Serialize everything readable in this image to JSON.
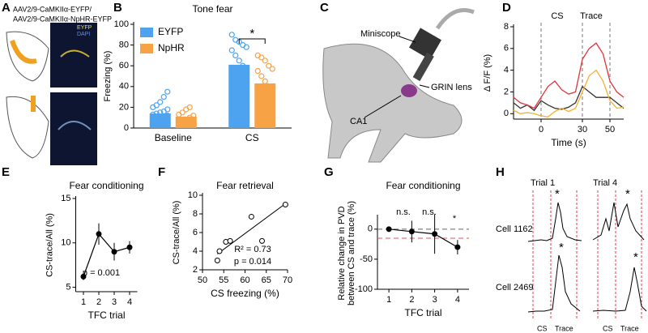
{
  "figure": {
    "panel_labels": [
      "A",
      "B",
      "C",
      "D",
      "E",
      "F",
      "G",
      "H"
    ],
    "a_labels": [
      "AAV2/9-CaMKIIα-EYFP/",
      "AAV2/9-CaMKIIα-NpHR-EYFP",
      "EYFP",
      "DAPI"
    ],
    "c_labels": [
      "Miniscope",
      "GRIN lens",
      "CA1"
    ],
    "h_labels": [
      "Trial 1",
      "Trial 4",
      "Cell 1162",
      "Cell 2469",
      "CS",
      "Trace",
      "CS",
      "Trace",
      "*",
      "*",
      "*",
      "*"
    ]
  },
  "chart_data": [
    {
      "type": "bar",
      "title": "Tone fear",
      "ylabel": "Freezing (%)",
      "categories": [
        "Baseline",
        "CS"
      ],
      "series": [
        {
          "name": "EYFP",
          "color": "#4da3f0",
          "values": [
            14,
            61
          ],
          "points": [
            [
              5,
              7,
              8,
              10,
              12,
              13,
              14,
              15,
              16,
              18,
              20,
              22,
              25,
              30,
              35
            ],
            [
              90,
              85,
              83,
              80,
              78,
              75,
              70,
              65,
              60,
              55,
              50,
              45,
              40,
              30,
              27
            ]
          ]
        },
        {
          "name": "NpHR",
          "color": "#f7a244",
          "values": [
            11,
            43
          ],
          "points": [
            [
              5,
              7,
              8,
              10,
              12,
              13,
              15,
              18,
              20
            ],
            [
              70,
              68,
              65,
              60,
              57,
              55,
              50,
              45,
              40,
              30,
              25,
              20,
              15
            ]
          ]
        }
      ],
      "ylim": [
        0,
        100
      ],
      "yticks": [
        0,
        20,
        40,
        60,
        80,
        100
      ],
      "annotations": [
        "*"
      ],
      "legend": "top-left"
    },
    {
      "type": "line",
      "xlabel": "Time (s)",
      "ylabel": "Δ F/F (%)",
      "x": [
        -20,
        -15,
        -10,
        -5,
        0,
        5,
        10,
        15,
        20,
        25,
        30,
        35,
        40,
        45,
        50,
        55,
        60
      ],
      "series": [
        {
          "color": "#333333",
          "values": [
            1,
            0.5,
            0.8,
            0.3,
            1.2,
            0.8,
            0.5,
            0.4,
            0.6,
            1,
            2.5,
            2,
            1.5,
            1.5,
            1.5,
            1,
            0.5
          ]
        },
        {
          "color": "#f5b031",
          "values": [
            0.3,
            0,
            0.1,
            0,
            -0.2,
            -0.3,
            0.2,
            0.5,
            0.2,
            0.5,
            2,
            3.5,
            4,
            3,
            1.2,
            0.5,
            0.6
          ]
        },
        {
          "color": "#e0353c",
          "values": [
            1.5,
            1,
            0.8,
            0.5,
            1.5,
            2.5,
            3,
            2.2,
            1.8,
            2,
            5,
            6,
            6.5,
            5.5,
            3,
            2,
            1.5
          ]
        }
      ],
      "xlim": [
        -20,
        60
      ],
      "xticks": [
        0,
        30,
        50
      ],
      "ylim": [
        -0.5,
        8
      ],
      "yticks": [
        0,
        2,
        4,
        6,
        8
      ],
      "annotations": [
        "CS",
        "Trace"
      ]
    },
    {
      "type": "line",
      "title": "Fear conditioning",
      "xlabel": "TFC trial",
      "ylabel": "CS-trace/All (%)",
      "x": [
        1,
        2,
        3,
        4
      ],
      "series": [
        {
          "color": "#000000",
          "values": [
            6.2,
            11,
            9,
            9.5
          ],
          "errors": [
            0.4,
            1.2,
            1,
            0.7
          ]
        }
      ],
      "xlim": [
        0.5,
        4.5
      ],
      "xticks": [
        1,
        2,
        3,
        4
      ],
      "ylim": [
        4.5,
        15
      ],
      "yticks": [
        5,
        10,
        15
      ],
      "annotations": [
        "p = 0.001"
      ]
    },
    {
      "type": "scatter",
      "title": "Fear retrieval",
      "xlabel": "CS freezing (%)",
      "ylabel": "CS-trace/All (%)",
      "x": [
        53.5,
        54,
        55.5,
        56.5,
        61.5,
        64,
        69.5
      ],
      "values": [
        3,
        4,
        5,
        5.1,
        7.7,
        5.1,
        9
      ],
      "fit": {
        "x": [
          53.5,
          69.5
        ],
        "y": [
          3.7,
          9.1
        ]
      },
      "xlim": [
        50,
        70
      ],
      "xticks": [
        50,
        55,
        60,
        65,
        70
      ],
      "ylim": [
        2,
        10
      ],
      "yticks": [
        2,
        4,
        6,
        8,
        10
      ],
      "annotations": [
        "R² = 0.73",
        "p = 0.014"
      ]
    },
    {
      "type": "line",
      "title": "Fear conditioning",
      "xlabel": "TFC trial",
      "ylabel": [
        "Relative change in PVD",
        "between CS and trace (%)"
      ],
      "x": [
        1,
        2,
        3,
        4
      ],
      "series": [
        {
          "color": "#000000",
          "values": [
            0,
            -4,
            -8,
            -30
          ],
          "errors": [
            0,
            18,
            33,
            12
          ]
        }
      ],
      "reference_lines": [
        {
          "value": 0,
          "color": "#666666"
        },
        {
          "value": -15,
          "color": "#e05555"
        }
      ],
      "xlim": [
        0.5,
        4.5
      ],
      "xticks": [
        1,
        2,
        3,
        4
      ],
      "ylim": [
        -100,
        20
      ],
      "yticks": [
        -100,
        -50,
        0
      ],
      "annotations": [
        "n.s.",
        "n.s.",
        "*"
      ]
    }
  ]
}
